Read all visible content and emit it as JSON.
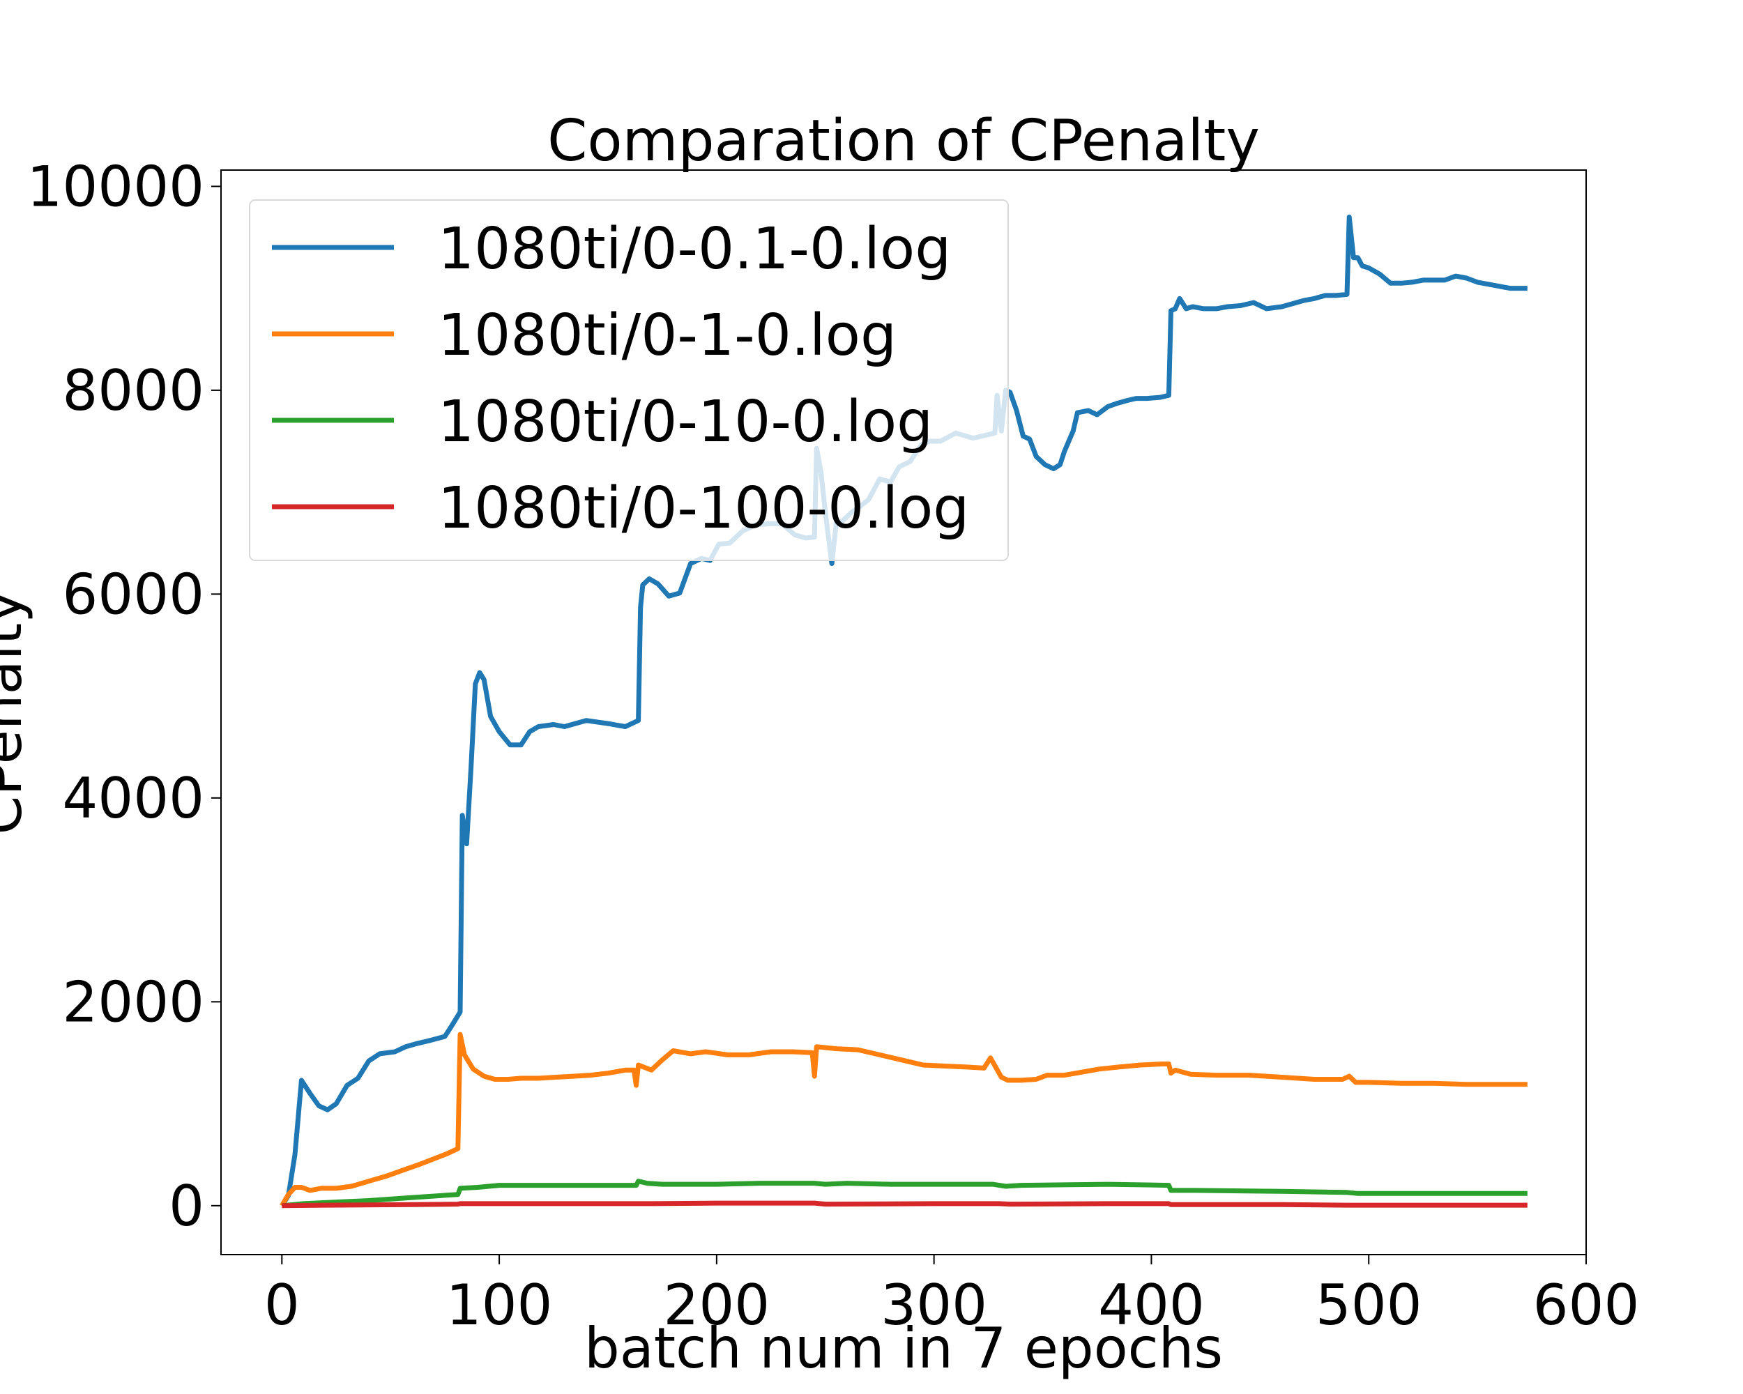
{
  "chart_data": {
    "type": "line",
    "title": "Comparation of CPenalty",
    "xlabel": "batch num in 7 epochs",
    "ylabel": "CPenalty",
    "xlim": [
      -28,
      600
    ],
    "ylim": [
      -480,
      10160
    ],
    "xticks": [
      0,
      100,
      200,
      300,
      400,
      500,
      600
    ],
    "yticks": [
      0,
      2000,
      4000,
      6000,
      8000,
      10000
    ],
    "xtick_labels": [
      "0",
      "100",
      "200",
      "300",
      "400",
      "500",
      "600"
    ],
    "ytick_labels": [
      "0",
      "2000",
      "4000",
      "6000",
      "8000",
      "10000"
    ],
    "grid": false,
    "legend_position": "top-left",
    "series": [
      {
        "name": "1080ti/0-0.1-0.log",
        "color": "#1f77b4",
        "points": [
          [
            0,
            0
          ],
          [
            3,
            100
          ],
          [
            6,
            500
          ],
          [
            9,
            1230
          ],
          [
            13,
            1100
          ],
          [
            17,
            980
          ],
          [
            21,
            940
          ],
          [
            25,
            1000
          ],
          [
            30,
            1180
          ],
          [
            35,
            1250
          ],
          [
            40,
            1420
          ],
          [
            45,
            1490
          ],
          [
            52,
            1510
          ],
          [
            57,
            1560
          ],
          [
            62,
            1590
          ],
          [
            68,
            1620
          ],
          [
            75,
            1660
          ],
          [
            78,
            1760
          ],
          [
            82,
            1900
          ],
          [
            83,
            3830
          ],
          [
            85,
            3550
          ],
          [
            87,
            4300
          ],
          [
            89,
            5120
          ],
          [
            91,
            5230
          ],
          [
            93,
            5160
          ],
          [
            96,
            4800
          ],
          [
            100,
            4650
          ],
          [
            105,
            4520
          ],
          [
            110,
            4520
          ],
          [
            114,
            4650
          ],
          [
            118,
            4700
          ],
          [
            125,
            4720
          ],
          [
            130,
            4700
          ],
          [
            140,
            4760
          ],
          [
            150,
            4730
          ],
          [
            158,
            4700
          ],
          [
            164,
            4760
          ],
          [
            165,
            5870
          ],
          [
            166,
            6090
          ],
          [
            169,
            6150
          ],
          [
            173,
            6100
          ],
          [
            178,
            5980
          ],
          [
            183,
            6010
          ],
          [
            188,
            6300
          ],
          [
            193,
            6350
          ],
          [
            197,
            6330
          ],
          [
            201,
            6490
          ],
          [
            206,
            6500
          ],
          [
            212,
            6620
          ],
          [
            218,
            6680
          ],
          [
            224,
            6690
          ],
          [
            230,
            6690
          ],
          [
            236,
            6580
          ],
          [
            241,
            6550
          ],
          [
            245,
            6560
          ],
          [
            246,
            7430
          ],
          [
            248,
            7200
          ],
          [
            250,
            6800
          ],
          [
            253,
            6300
          ],
          [
            255,
            6690
          ],
          [
            258,
            6720
          ],
          [
            262,
            6800
          ],
          [
            266,
            6860
          ],
          [
            270,
            6930
          ],
          [
            275,
            7130
          ],
          [
            280,
            7100
          ],
          [
            284,
            7250
          ],
          [
            289,
            7300
          ],
          [
            294,
            7460
          ],
          [
            298,
            7500
          ],
          [
            303,
            7500
          ],
          [
            310,
            7580
          ],
          [
            318,
            7530
          ],
          [
            324,
            7560
          ],
          [
            328,
            7580
          ],
          [
            329,
            7950
          ],
          [
            331,
            7600
          ],
          [
            333,
            8000
          ],
          [
            335,
            7980
          ],
          [
            338,
            7800
          ],
          [
            341,
            7550
          ],
          [
            344,
            7520
          ],
          [
            347,
            7350
          ],
          [
            351,
            7270
          ],
          [
            355,
            7230
          ],
          [
            358,
            7270
          ],
          [
            360,
            7400
          ],
          [
            364,
            7600
          ],
          [
            366,
            7780
          ],
          [
            371,
            7800
          ],
          [
            375,
            7760
          ],
          [
            380,
            7840
          ],
          [
            384,
            7870
          ],
          [
            389,
            7900
          ],
          [
            393,
            7920
          ],
          [
            398,
            7920
          ],
          [
            404,
            7930
          ],
          [
            408,
            7950
          ],
          [
            409,
            8780
          ],
          [
            411,
            8800
          ],
          [
            413,
            8900
          ],
          [
            416,
            8800
          ],
          [
            419,
            8820
          ],
          [
            424,
            8800
          ],
          [
            430,
            8800
          ],
          [
            435,
            8820
          ],
          [
            441,
            8830
          ],
          [
            447,
            8860
          ],
          [
            453,
            8800
          ],
          [
            460,
            8820
          ],
          [
            465,
            8850
          ],
          [
            470,
            8880
          ],
          [
            475,
            8900
          ],
          [
            480,
            8930
          ],
          [
            485,
            8930
          ],
          [
            490,
            8940
          ],
          [
            491,
            9700
          ],
          [
            493,
            9300
          ],
          [
            495,
            9300
          ],
          [
            497,
            9220
          ],
          [
            500,
            9200
          ],
          [
            505,
            9140
          ],
          [
            510,
            9050
          ],
          [
            515,
            9050
          ],
          [
            520,
            9060
          ],
          [
            525,
            9080
          ],
          [
            530,
            9080
          ],
          [
            535,
            9080
          ],
          [
            540,
            9120
          ],
          [
            545,
            9100
          ],
          [
            550,
            9060
          ],
          [
            560,
            9020
          ],
          [
            565,
            9000
          ],
          [
            573,
            9000
          ]
        ]
      },
      {
        "name": "1080ti/0-1-0.log",
        "color": "#ff7f0e",
        "points": [
          [
            0,
            0
          ],
          [
            3,
            110
          ],
          [
            6,
            180
          ],
          [
            9,
            180
          ],
          [
            13,
            150
          ],
          [
            18,
            170
          ],
          [
            25,
            170
          ],
          [
            32,
            190
          ],
          [
            40,
            240
          ],
          [
            48,
            290
          ],
          [
            56,
            350
          ],
          [
            64,
            410
          ],
          [
            70,
            460
          ],
          [
            76,
            510
          ],
          [
            81,
            560
          ],
          [
            82,
            1680
          ],
          [
            84,
            1480
          ],
          [
            88,
            1340
          ],
          [
            93,
            1270
          ],
          [
            98,
            1240
          ],
          [
            104,
            1240
          ],
          [
            110,
            1250
          ],
          [
            118,
            1250
          ],
          [
            126,
            1260
          ],
          [
            134,
            1270
          ],
          [
            142,
            1280
          ],
          [
            150,
            1300
          ],
          [
            158,
            1330
          ],
          [
            162,
            1330
          ],
          [
            163,
            1180
          ],
          [
            164,
            1380
          ],
          [
            170,
            1330
          ],
          [
            175,
            1430
          ],
          [
            180,
            1520
          ],
          [
            188,
            1490
          ],
          [
            195,
            1510
          ],
          [
            205,
            1480
          ],
          [
            215,
            1480
          ],
          [
            225,
            1510
          ],
          [
            235,
            1510
          ],
          [
            244,
            1500
          ],
          [
            245,
            1270
          ],
          [
            246,
            1560
          ],
          [
            255,
            1540
          ],
          [
            265,
            1530
          ],
          [
            275,
            1480
          ],
          [
            285,
            1430
          ],
          [
            295,
            1380
          ],
          [
            305,
            1370
          ],
          [
            315,
            1360
          ],
          [
            323,
            1350
          ],
          [
            326,
            1450
          ],
          [
            331,
            1260
          ],
          [
            334,
            1230
          ],
          [
            340,
            1230
          ],
          [
            347,
            1240
          ],
          [
            352,
            1280
          ],
          [
            360,
            1280
          ],
          [
            368,
            1310
          ],
          [
            376,
            1340
          ],
          [
            385,
            1360
          ],
          [
            395,
            1380
          ],
          [
            405,
            1390
          ],
          [
            408,
            1390
          ],
          [
            409,
            1300
          ],
          [
            411,
            1330
          ],
          [
            418,
            1290
          ],
          [
            430,
            1280
          ],
          [
            445,
            1280
          ],
          [
            460,
            1260
          ],
          [
            475,
            1240
          ],
          [
            488,
            1240
          ],
          [
            491,
            1270
          ],
          [
            494,
            1210
          ],
          [
            500,
            1210
          ],
          [
            515,
            1200
          ],
          [
            530,
            1200
          ],
          [
            545,
            1190
          ],
          [
            560,
            1190
          ],
          [
            573,
            1190
          ]
        ]
      },
      {
        "name": "1080ti/0-10-0.log",
        "color": "#2ca02c",
        "points": [
          [
            0,
            0
          ],
          [
            10,
            20
          ],
          [
            20,
            30
          ],
          [
            40,
            50
          ],
          [
            60,
            80
          ],
          [
            81,
            110
          ],
          [
            82,
            170
          ],
          [
            90,
            180
          ],
          [
            100,
            200
          ],
          [
            120,
            200
          ],
          [
            150,
            200
          ],
          [
            163,
            200
          ],
          [
            164,
            240
          ],
          [
            168,
            220
          ],
          [
            175,
            210
          ],
          [
            200,
            210
          ],
          [
            220,
            220
          ],
          [
            245,
            220
          ],
          [
            250,
            210
          ],
          [
            260,
            220
          ],
          [
            280,
            210
          ],
          [
            300,
            210
          ],
          [
            327,
            210
          ],
          [
            333,
            190
          ],
          [
            340,
            200
          ],
          [
            380,
            210
          ],
          [
            408,
            200
          ],
          [
            409,
            150
          ],
          [
            420,
            150
          ],
          [
            460,
            140
          ],
          [
            490,
            130
          ],
          [
            495,
            120
          ],
          [
            530,
            120
          ],
          [
            573,
            120
          ]
        ]
      },
      {
        "name": "1080ti/0-100-0.log",
        "color": "#d62728",
        "points": [
          [
            0,
            0
          ],
          [
            20,
            5
          ],
          [
            60,
            10
          ],
          [
            81,
            15
          ],
          [
            82,
            20
          ],
          [
            120,
            20
          ],
          [
            170,
            20
          ],
          [
            200,
            25
          ],
          [
            245,
            25
          ],
          [
            250,
            15
          ],
          [
            300,
            20
          ],
          [
            330,
            20
          ],
          [
            335,
            15
          ],
          [
            380,
            20
          ],
          [
            408,
            20
          ],
          [
            409,
            10
          ],
          [
            460,
            10
          ],
          [
            490,
            5
          ],
          [
            495,
            5
          ],
          [
            573,
            5
          ]
        ]
      }
    ]
  }
}
